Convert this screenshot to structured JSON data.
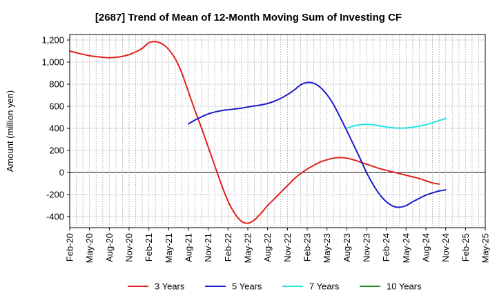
{
  "chart_data": {
    "type": "line",
    "title": "[2687]  Trend of Mean of 12-Month Moving Sum of Investing CF",
    "xlabel": "",
    "ylabel": "Amount (million yen)",
    "ylim": [
      -500,
      1250
    ],
    "yticks": [
      -400,
      -200,
      0,
      200,
      400,
      600,
      800,
      1000,
      1200
    ],
    "ytick_labels": [
      "-400",
      "-200",
      "0",
      "200",
      "400",
      "600",
      "800",
      "1,000",
      "1,200"
    ],
    "xticks": [
      "Feb-20",
      "May-20",
      "Aug-20",
      "Nov-20",
      "Feb-21",
      "May-21",
      "Aug-21",
      "Nov-21",
      "Feb-22",
      "May-22",
      "Aug-22",
      "Nov-22",
      "Feb-23",
      "May-23",
      "Aug-23",
      "Nov-23",
      "Feb-24",
      "May-24",
      "Aug-24",
      "Nov-24",
      "Feb-25",
      "May-25"
    ],
    "grid": true,
    "legend_position": "bottom",
    "series": [
      {
        "name": "3 Years",
        "color": "#e0201b",
        "points": [
          [
            "Feb-20",
            1100
          ],
          [
            "Mar-20",
            1085
          ],
          [
            "Apr-20",
            1070
          ],
          [
            "May-20",
            1058
          ],
          [
            "Jun-20",
            1050
          ],
          [
            "Jul-20",
            1043
          ],
          [
            "Aug-20",
            1040
          ],
          [
            "Sep-20",
            1043
          ],
          [
            "Oct-20",
            1052
          ],
          [
            "Nov-20",
            1068
          ],
          [
            "Dec-20",
            1092
          ],
          [
            "Jan-21",
            1125
          ],
          [
            "Feb-21",
            1175
          ],
          [
            "Mar-21",
            1185
          ],
          [
            "Apr-21",
            1165
          ],
          [
            "May-21",
            1115
          ],
          [
            "Jun-21",
            1030
          ],
          [
            "Jul-21",
            900
          ],
          [
            "Aug-21",
            730
          ],
          [
            "Sep-21",
            560
          ],
          [
            "Oct-21",
            400
          ],
          [
            "Nov-21",
            230
          ],
          [
            "Dec-21",
            60
          ],
          [
            "Jan-22",
            -110
          ],
          [
            "Feb-22",
            -260
          ],
          [
            "Mar-22",
            -370
          ],
          [
            "Apr-22",
            -440
          ],
          [
            "May-22",
            -460
          ],
          [
            "Jun-22",
            -430
          ],
          [
            "Jul-22",
            -370
          ],
          [
            "Aug-22",
            -300
          ],
          [
            "Sep-22",
            -240
          ],
          [
            "Oct-22",
            -180
          ],
          [
            "Nov-22",
            -120
          ],
          [
            "Dec-22",
            -60
          ],
          [
            "Jan-23",
            -10
          ],
          [
            "Feb-23",
            30
          ],
          [
            "Mar-23",
            65
          ],
          [
            "Apr-23",
            95
          ],
          [
            "May-23",
            115
          ],
          [
            "Jun-23",
            130
          ],
          [
            "Jul-23",
            135
          ],
          [
            "Aug-23",
            130
          ],
          [
            "Sep-23",
            115
          ],
          [
            "Oct-23",
            95
          ],
          [
            "Nov-23",
            75
          ],
          [
            "Dec-23",
            55
          ],
          [
            "Jan-24",
            35
          ],
          [
            "Feb-24",
            20
          ],
          [
            "Mar-24",
            5
          ],
          [
            "Apr-24",
            -10
          ],
          [
            "May-24",
            -25
          ],
          [
            "Jun-24",
            -40
          ],
          [
            "Jul-24",
            -55
          ],
          [
            "Aug-24",
            -75
          ],
          [
            "Sep-24",
            -95
          ],
          [
            "Oct-24",
            -105
          ]
        ]
      },
      {
        "name": "5 Years",
        "color": "#1a1acb",
        "points": [
          [
            "Aug-21",
            440
          ],
          [
            "Sep-21",
            475
          ],
          [
            "Oct-21",
            505
          ],
          [
            "Nov-21",
            530
          ],
          [
            "Dec-21",
            548
          ],
          [
            "Jan-22",
            560
          ],
          [
            "Feb-22",
            568
          ],
          [
            "Mar-22",
            575
          ],
          [
            "Apr-22",
            583
          ],
          [
            "May-22",
            593
          ],
          [
            "Jun-22",
            603
          ],
          [
            "Jul-22",
            612
          ],
          [
            "Aug-22",
            625
          ],
          [
            "Sep-22",
            645
          ],
          [
            "Oct-22",
            672
          ],
          [
            "Nov-22",
            705
          ],
          [
            "Dec-22",
            745
          ],
          [
            "Jan-23",
            793
          ],
          [
            "Feb-23",
            815
          ],
          [
            "Mar-23",
            808
          ],
          [
            "Apr-23",
            770
          ],
          [
            "May-23",
            705
          ],
          [
            "Jun-23",
            615
          ],
          [
            "Jul-23",
            500
          ],
          [
            "Aug-23",
            380
          ],
          [
            "Sep-23",
            255
          ],
          [
            "Oct-23",
            130
          ],
          [
            "Nov-23",
            0
          ],
          [
            "Dec-23",
            -110
          ],
          [
            "Jan-24",
            -200
          ],
          [
            "Feb-24",
            -265
          ],
          [
            "Mar-24",
            -305
          ],
          [
            "Apr-24",
            -315
          ],
          [
            "May-24",
            -300
          ],
          [
            "Jun-24",
            -265
          ],
          [
            "Jul-24",
            -235
          ],
          [
            "Aug-24",
            -205
          ],
          [
            "Sep-24",
            -185
          ],
          [
            "Oct-24",
            -168
          ],
          [
            "Nov-24",
            -158
          ]
        ]
      },
      {
        "name": "7 Years",
        "color": "#22e5e5",
        "points": [
          [
            "Aug-23",
            400
          ],
          [
            "Sep-23",
            420
          ],
          [
            "Oct-23",
            432
          ],
          [
            "Nov-23",
            436
          ],
          [
            "Dec-23",
            432
          ],
          [
            "Jan-24",
            422
          ],
          [
            "Feb-24",
            412
          ],
          [
            "Mar-24",
            405
          ],
          [
            "Apr-24",
            402
          ],
          [
            "May-24",
            403
          ],
          [
            "Jun-24",
            410
          ],
          [
            "Jul-24",
            420
          ],
          [
            "Aug-24",
            432
          ],
          [
            "Sep-24",
            450
          ],
          [
            "Oct-24",
            470
          ],
          [
            "Nov-24",
            490
          ]
        ]
      },
      {
        "name": "10 Years",
        "color": "#1c8c1c",
        "points": []
      }
    ]
  }
}
